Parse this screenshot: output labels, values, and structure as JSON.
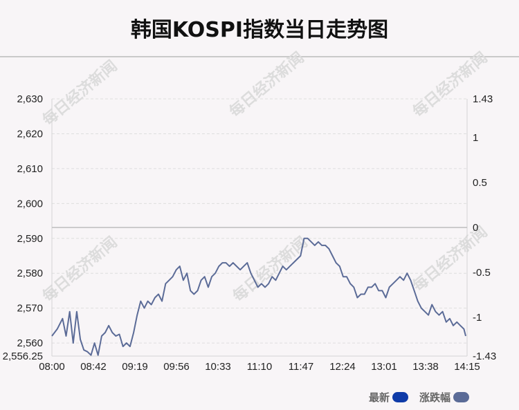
{
  "title": "韩国KOSPI指数当日走势图",
  "watermark": "每日经济新闻",
  "chart_data": {
    "type": "line",
    "left_axis": {
      "ticks": [
        "2,630",
        "2,620",
        "2,610",
        "2,600",
        "2,590",
        "2,580",
        "2,570",
        "2,560"
      ],
      "tick_values": [
        2630,
        2620,
        2610,
        2600,
        2590,
        2580,
        2570,
        2560
      ],
      "min_label": "2,556.25",
      "range": [
        2556.25,
        2630
      ]
    },
    "right_axis": {
      "ticks": [
        "1.43",
        "1",
        "0.5",
        "0",
        "-0.5",
        "-1",
        "-1.43"
      ],
      "tick_values": [
        1.43,
        1,
        0.5,
        0,
        -0.5,
        -1,
        -1.43
      ],
      "range": [
        -1.43,
        1.43
      ]
    },
    "x_ticks": [
      "08:00",
      "08:42",
      "09:19",
      "09:56",
      "10:33",
      "11:10",
      "11:47",
      "12:24",
      "13:01",
      "13:38",
      "14:15"
    ],
    "reference_value": 2593,
    "series": [
      {
        "name": "最新",
        "color": "#5b6b97",
        "points": [
          [
            0,
            2562
          ],
          [
            3,
            2564
          ],
          [
            6,
            2567
          ],
          [
            8,
            2562
          ],
          [
            10,
            2569
          ],
          [
            12,
            2560
          ],
          [
            14,
            2569
          ],
          [
            16,
            2561
          ],
          [
            18,
            2558
          ],
          [
            20,
            2557.5
          ],
          [
            22,
            2556.5
          ],
          [
            24,
            2560
          ],
          [
            26,
            2556.5
          ],
          [
            28,
            2562
          ],
          [
            30,
            2563
          ],
          [
            32,
            2565
          ],
          [
            34,
            2563
          ],
          [
            36,
            2562
          ],
          [
            38,
            2562.5
          ],
          [
            40,
            2559
          ],
          [
            42,
            2560
          ],
          [
            44,
            2559
          ],
          [
            46,
            2563
          ],
          [
            48,
            2568
          ],
          [
            50,
            2572
          ],
          [
            52,
            2570
          ],
          [
            54,
            2572
          ],
          [
            56,
            2571
          ],
          [
            58,
            2573
          ],
          [
            60,
            2574
          ],
          [
            62,
            2572
          ],
          [
            64,
            2577
          ],
          [
            66,
            2578
          ],
          [
            68,
            2579
          ],
          [
            70,
            2581
          ],
          [
            72,
            2582
          ],
          [
            74,
            2578
          ],
          [
            76,
            2580
          ],
          [
            78,
            2575
          ],
          [
            80,
            2574
          ],
          [
            82,
            2575
          ],
          [
            84,
            2578
          ],
          [
            86,
            2579
          ],
          [
            88,
            2576
          ],
          [
            90,
            2579
          ],
          [
            92,
            2580
          ],
          [
            94,
            2582
          ],
          [
            96,
            2583
          ],
          [
            98,
            2583
          ],
          [
            100,
            2582
          ],
          [
            102,
            2583
          ],
          [
            104,
            2582
          ],
          [
            106,
            2581
          ],
          [
            108,
            2582
          ],
          [
            110,
            2583
          ],
          [
            112,
            2580
          ],
          [
            114,
            2578
          ],
          [
            116,
            2576
          ],
          [
            118,
            2577
          ],
          [
            120,
            2576
          ],
          [
            122,
            2577
          ],
          [
            124,
            2579
          ],
          [
            126,
            2578
          ],
          [
            128,
            2580
          ],
          [
            130,
            2582
          ],
          [
            132,
            2581
          ],
          [
            134,
            2582
          ],
          [
            136,
            2583
          ],
          [
            138,
            2584
          ],
          [
            140,
            2585
          ],
          [
            142,
            2590
          ],
          [
            144,
            2590
          ],
          [
            146,
            2589
          ],
          [
            148,
            2588
          ],
          [
            150,
            2589
          ],
          [
            152,
            2588
          ],
          [
            154,
            2588
          ],
          [
            156,
            2587
          ],
          [
            158,
            2585
          ],
          [
            160,
            2583
          ],
          [
            162,
            2582
          ],
          [
            164,
            2579
          ],
          [
            166,
            2579
          ],
          [
            168,
            2577
          ],
          [
            170,
            2576
          ],
          [
            172,
            2573
          ],
          [
            174,
            2574
          ],
          [
            176,
            2574
          ],
          [
            178,
            2576
          ],
          [
            180,
            2576
          ],
          [
            182,
            2577
          ],
          [
            184,
            2575
          ],
          [
            186,
            2575
          ],
          [
            188,
            2573
          ],
          [
            190,
            2576
          ],
          [
            192,
            2577
          ],
          [
            194,
            2578
          ],
          [
            196,
            2579
          ],
          [
            198,
            2578
          ],
          [
            200,
            2580
          ],
          [
            202,
            2578
          ],
          [
            204,
            2575
          ],
          [
            206,
            2572
          ],
          [
            208,
            2570
          ],
          [
            210,
            2569
          ],
          [
            212,
            2568
          ],
          [
            214,
            2571
          ],
          [
            216,
            2569
          ],
          [
            218,
            2568
          ],
          [
            220,
            2569
          ],
          [
            222,
            2566
          ],
          [
            224,
            2567
          ],
          [
            226,
            2565
          ],
          [
            228,
            2566
          ],
          [
            230,
            2565
          ],
          [
            232,
            2564
          ],
          [
            233,
            2562
          ]
        ]
      },
      {
        "name": "涨跌幅",
        "color": "#5b6b97"
      }
    ],
    "legend": "bottom-right",
    "grid": true
  },
  "legend": {
    "items": [
      {
        "label": "最新",
        "color": "#0f3ba8"
      },
      {
        "label": "涨跌幅",
        "color": "#5b6b97"
      }
    ]
  }
}
